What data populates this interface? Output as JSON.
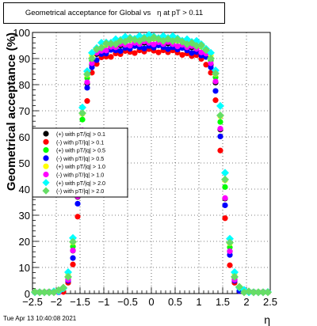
{
  "chart_data": {
    "type": "scatter",
    "title": "Geometrical acceptance for Global vs   η at pT > 0.11",
    "xlabel": "η",
    "ylabel": "Geometrical acceptance (%)",
    "xlim": [
      -2.5,
      2.5
    ],
    "ylim": [
      0,
      100
    ],
    "x_ticks": [
      -2.5,
      -2,
      -1.5,
      -1,
      -0.5,
      0,
      0.5,
      1,
      1.5,
      2,
      2.5
    ],
    "x_tick_labels": [
      "−2.5",
      "−2",
      "−1.5",
      "−1",
      "−0.5",
      "0",
      "0.5",
      "1",
      "1.5",
      "2",
      "2.5"
    ],
    "y_ticks": [
      0,
      10,
      20,
      30,
      40,
      50,
      60,
      70,
      80,
      90,
      100
    ],
    "y_tick_labels": [
      "0",
      "10",
      "20",
      "30",
      "40",
      "50",
      "60",
      "70",
      "80",
      "90",
      "100"
    ],
    "grid": true,
    "legend_position": "middle-left",
    "timestamp": "Tue Apr 13 10:40:08 2021",
    "series": [
      {
        "name": "(+) with pT/|q| > 0.1",
        "color": "#000000",
        "marker": "circle",
        "plateau": 95.5,
        "edge": 1.52
      },
      {
        "name": "(-) with pT/|q| > 0.1",
        "color": "#ff0000",
        "marker": "circle",
        "plateau": 93.0,
        "edge": 1.49
      },
      {
        "name": "(+) with pT/|q| > 0.5",
        "color": "#00ff00",
        "marker": "circle",
        "plateau": 97.0,
        "edge": 1.53
      },
      {
        "name": "(-) with pT/|q| > 0.5",
        "color": "#0000ff",
        "marker": "circle",
        "plateau": 94.5,
        "edge": 1.51
      },
      {
        "name": "(+) with pT/|q| > 1.0",
        "color": "#ffff00",
        "marker": "circle",
        "plateau": 97.5,
        "edge": 1.54
      },
      {
        "name": "(-) with pT/|q| > 1.0",
        "color": "#ff00ff",
        "marker": "circle",
        "plateau": 96.0,
        "edge": 1.52
      },
      {
        "name": "(+) with pT/|q| > 2.0",
        "color": "#00ffff",
        "marker": "diamond",
        "plateau": 98.5,
        "edge": 1.55
      },
      {
        "name": "(-) with pT/|q| > 2.0",
        "color": "#66dd66",
        "marker": "diamond",
        "plateau": 97.5,
        "edge": 1.54
      }
    ]
  }
}
